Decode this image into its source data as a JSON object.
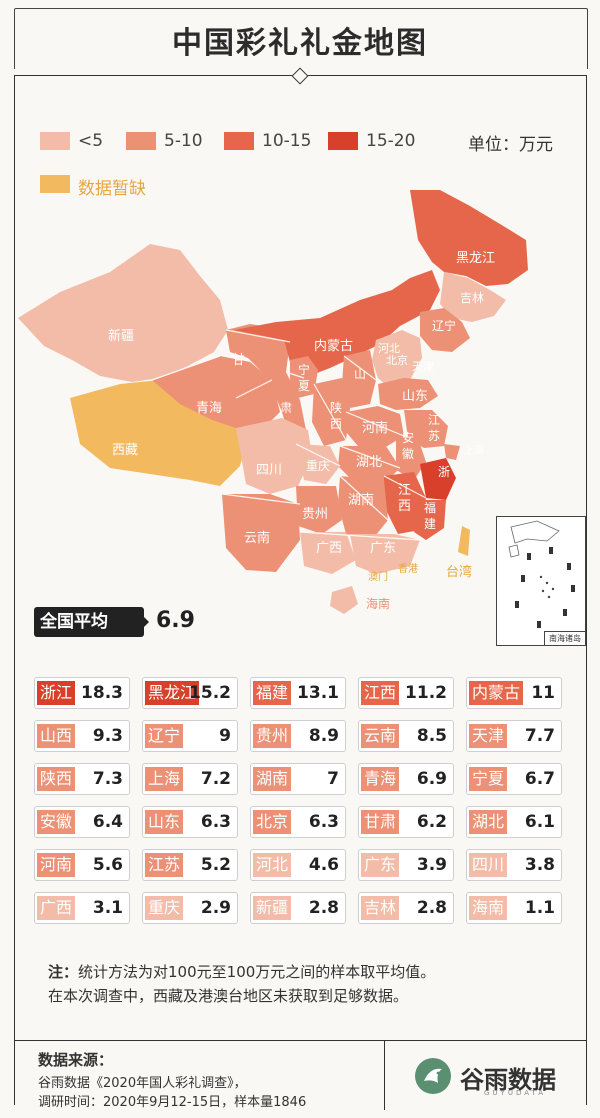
{
  "title": "中国彩礼礼金地图",
  "unit": "单位：万元",
  "legend": [
    {
      "label": "<5",
      "color": "#f3bca8"
    },
    {
      "label": "5-10",
      "color": "#ec9076"
    },
    {
      "label": "10-15",
      "color": "#e5664a"
    },
    {
      "label": "15-20",
      "color": "#d9402b"
    },
    {
      "label": "数据暂缺",
      "color": "#f2b95f"
    }
  ],
  "national_avg_label": "全国平均",
  "national_avg_value": "6.9",
  "chart_data": {
    "type": "table",
    "title": "中国彩礼礼金地图",
    "unit": "万元",
    "national_average": 6.9,
    "categories": [
      "浙江",
      "黑龙江",
      "福建",
      "江西",
      "内蒙古",
      "山西",
      "辽宁",
      "贵州",
      "云南",
      "天津",
      "陕西",
      "上海",
      "湖南",
      "青海",
      "宁夏",
      "安徽",
      "山东",
      "北京",
      "甘肃",
      "湖北",
      "河南",
      "江苏",
      "河北",
      "广东",
      "四川",
      "广西",
      "重庆",
      "新疆",
      "吉林",
      "海南"
    ],
    "values": [
      18.3,
      15.2,
      13.1,
      11.2,
      11,
      9.3,
      9,
      8.9,
      8.5,
      7.7,
      7.3,
      7.2,
      7,
      6.9,
      6.7,
      6.4,
      6.3,
      6.3,
      6.2,
      6.1,
      5.6,
      5.2,
      4.6,
      3.9,
      3.8,
      3.1,
      2.9,
      2.8,
      2.8,
      1.1
    ],
    "display_values": [
      "18.3",
      "15.2",
      "13.1",
      "11.2",
      "11",
      "9.3",
      "9",
      "8.9",
      "8.5",
      "7.7",
      "7.3",
      "7.2",
      "7",
      "6.9",
      "6.7",
      "6.4",
      "6.3",
      "6.3",
      "6.2",
      "6.1",
      "5.6",
      "5.2",
      "4.6",
      "3.9",
      "3.8",
      "3.1",
      "2.9",
      "2.8",
      "2.8",
      "1.1"
    ],
    "no_data": [
      "西藏",
      "香港",
      "澳门",
      "台湾"
    ]
  },
  "map": {
    "labels": [
      "黑龙江",
      "吉林",
      "辽宁",
      "内蒙古",
      "新疆",
      "甘",
      "青海",
      "宁",
      "夏",
      "西藏",
      "陕",
      "西",
      "山",
      "北京",
      "天津",
      "河北",
      "山东",
      "河南",
      "安",
      "徽",
      "江",
      "苏",
      "上海",
      "湖北",
      "四川",
      "重庆",
      "浙",
      "贵州",
      "湖南",
      "江",
      "西",
      "福",
      "建",
      "云南",
      "广西",
      "广东",
      "澳门",
      "香港",
      "台湾",
      "海南",
      "肃"
    ],
    "inset_label": "南海诸岛"
  },
  "note": {
    "prefix": "注：",
    "line1": "统计方法为对100元至100万元之间的样本取平均值。",
    "line2": "在本次调查中，西藏及港澳台地区未获取到足够数据。"
  },
  "source": {
    "heading": "数据来源：",
    "line1": "谷雨数据《2020年国人彩礼调查》，",
    "line2": "调研时间：2020年9月12-15日，样本量1846"
  },
  "logo": {
    "name": "谷雨数据",
    "sub": "GUYUDATA"
  }
}
